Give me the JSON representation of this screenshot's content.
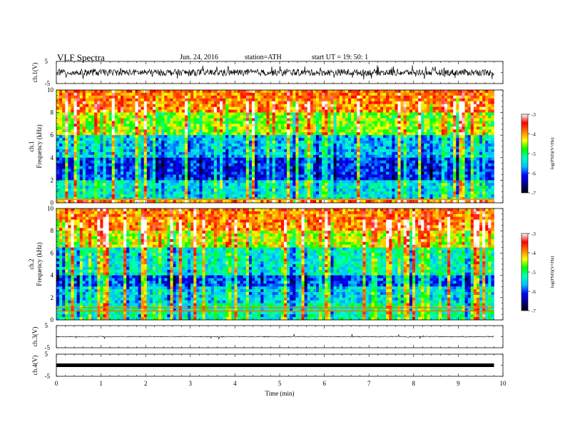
{
  "header": {
    "title": "VLF  Spectra",
    "date": "Jun. 24, 2016",
    "station": "station=ATH",
    "start": "start  UT =   19: 50: 1"
  },
  "colors": {
    "colormap": [
      "#000000",
      "#00008b",
      "#0000ff",
      "#00bfff",
      "#00ffc0",
      "#00ff00",
      "#ffff00",
      "#ff7f00",
      "#ff0000",
      "#ffffff"
    ],
    "waveform": "#000000"
  },
  "chart_data": [
    {
      "type": "line",
      "name": "ch1-waveform",
      "ylabel": "ch.1(V)",
      "ylim": [
        -5,
        5
      ],
      "yticks": [
        "5",
        "-5"
      ],
      "description_values": {
        "baseline": 0,
        "amplitude_approx": 1.5
      }
    },
    {
      "type": "heatmap",
      "name": "ch1-spectrogram",
      "ylabel_line1": "ch.1",
      "ylabel_line2": "Frequency  (kHz)",
      "ylim": [
        0,
        10
      ],
      "yticks": [
        "0",
        "2",
        "4",
        "6",
        "8",
        "10"
      ],
      "xlim": [
        0,
        10
      ],
      "data_extent_x": [
        0,
        9.8
      ],
      "frequency_bands_logPSD": [
        {
          "f": [
            0,
            0.3
          ],
          "value": -3.9
        },
        {
          "f": [
            0.3,
            2.0
          ],
          "value": -5.4
        },
        {
          "f": [
            2.0,
            4.0
          ],
          "value": -6.1
        },
        {
          "f": [
            4.0,
            6.0
          ],
          "value": -5.6
        },
        {
          "f": [
            6.0,
            8.0
          ],
          "value": -4.6
        },
        {
          "f": [
            8.0,
            10.0
          ],
          "value": -3.9
        }
      ],
      "colorbar": {
        "label": "log(PSD)(V²/Hz)",
        "range": [
          -7,
          -3
        ],
        "ticks": [
          "-3",
          "-4",
          "-5",
          "-6",
          "-7"
        ]
      }
    },
    {
      "type": "heatmap",
      "name": "ch2-spectrogram",
      "ylabel_line1": "ch.2",
      "ylabel_line2": "Frequency  (kHz)",
      "ylim": [
        0,
        10
      ],
      "yticks": [
        "0",
        "2",
        "4",
        "6",
        "8",
        "10"
      ],
      "xlim": [
        0,
        10
      ],
      "data_extent_x": [
        0,
        9.8
      ],
      "frequency_bands_logPSD": [
        {
          "f": [
            0,
            1.5
          ],
          "value": -5.2
        },
        {
          "f": [
            1.5,
            3.0
          ],
          "value": -5.5
        },
        {
          "f": [
            3.0,
            4.0
          ],
          "value": -6.0
        },
        {
          "f": [
            4.0,
            6.5
          ],
          "value": -5.3
        },
        {
          "f": [
            6.5,
            8.0
          ],
          "value": -4.4
        },
        {
          "f": [
            8.0,
            10.0
          ],
          "value": -3.9
        }
      ],
      "horizontal_lines_kHz": [
        0.8,
        1.1
      ],
      "colorbar": {
        "label": "log(PSD)(V²/Hz)",
        "range": [
          -7,
          -3
        ],
        "ticks": [
          "-3",
          "-4",
          "-5",
          "-6",
          "-7"
        ]
      }
    },
    {
      "type": "line",
      "name": "ch3-waveform",
      "ylabel": "ch.3(V)",
      "ylim": [
        -5,
        5
      ],
      "yticks": [
        "5",
        "-5"
      ],
      "description_values": {
        "baseline": 0,
        "amplitude_approx": 0.2
      }
    },
    {
      "type": "line",
      "name": "ch4-waveform",
      "ylabel": "ch.4(V)",
      "ylim": [
        -5,
        5
      ],
      "yticks": [
        "5",
        "-5"
      ],
      "description_values": {
        "baseline": 0,
        "amplitude_approx": 0.3
      }
    }
  ],
  "x_axis": {
    "label": "Time  (min)",
    "xlim": [
      0,
      10
    ],
    "ticks": [
      "0",
      "1",
      "2",
      "3",
      "4",
      "5",
      "6",
      "7",
      "8",
      "9",
      "10"
    ]
  }
}
